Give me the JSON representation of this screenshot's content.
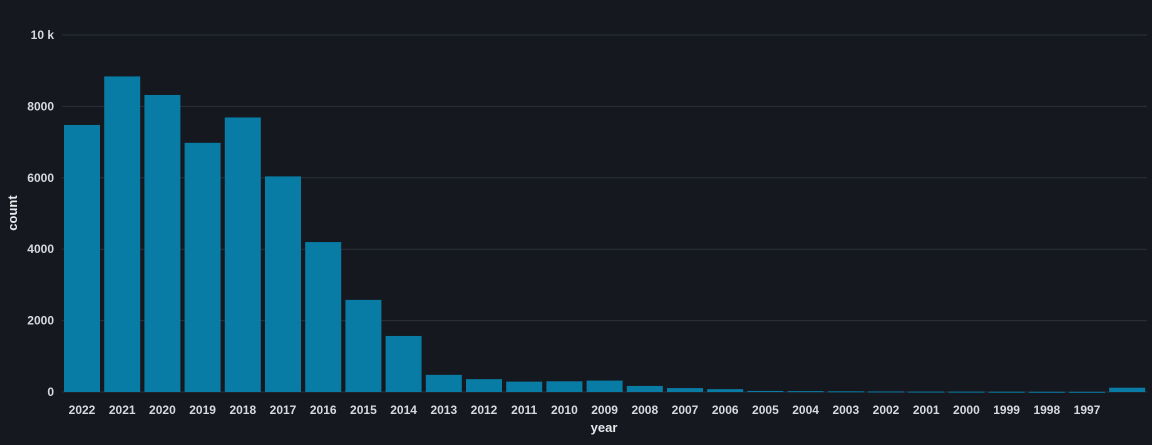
{
  "chart_data": {
    "type": "bar",
    "xlabel": "year",
    "ylabel": "count",
    "ylim": [
      0,
      10000
    ],
    "y_ticks": [
      0,
      2000,
      4000,
      6000,
      8000,
      10000
    ],
    "y_tick_labels": [
      "0",
      "2000",
      "4000",
      "6000",
      "8000",
      "10 k"
    ],
    "grid": true,
    "bar_color": "#087ca4",
    "categories": [
      "2022",
      "2021",
      "2020",
      "2019",
      "2018",
      "2017",
      "2016",
      "2015",
      "2014",
      "2013",
      "2012",
      "2011",
      "2010",
      "2009",
      "2008",
      "2007",
      "2006",
      "2005",
      "2004",
      "2003",
      "2002",
      "2001",
      "2000",
      "1999",
      "1998",
      "1997",
      ""
    ],
    "values": [
      7480,
      8840,
      8320,
      6980,
      7690,
      6040,
      4200,
      2580,
      1570,
      480,
      360,
      290,
      300,
      320,
      170,
      110,
      80,
      30,
      25,
      20,
      15,
      12,
      10,
      8,
      6,
      5,
      120
    ]
  }
}
